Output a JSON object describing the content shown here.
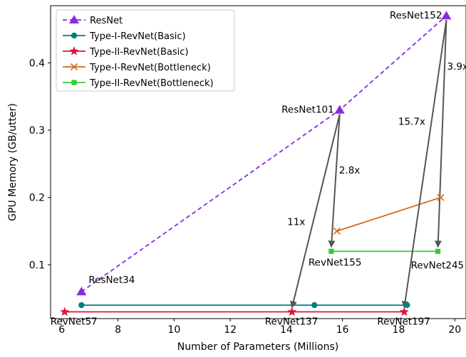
{
  "chart_data": {
    "type": "line",
    "title": "",
    "xlabel": "Number of Parameters (Millions)",
    "ylabel": "GPU Memory (GB/utter)",
    "xlim": [
      5.6,
      20.4
    ],
    "ylim": [
      0.02,
      0.485
    ],
    "xticks": [
      6,
      8,
      10,
      12,
      14,
      16,
      18,
      20
    ],
    "yticks": [
      0.1,
      0.2,
      0.3,
      0.4
    ],
    "grid": false,
    "legend_position": "top-left",
    "series": [
      {
        "name": "ResNet",
        "color": "#8a2be2",
        "marker": "triangle",
        "linestyle": "dashed",
        "x": [
          6.7,
          15.9,
          19.7
        ],
        "y": [
          0.06,
          0.33,
          0.47
        ]
      },
      {
        "name": "Type-I-RevNet(Basic)",
        "color": "#008080",
        "marker": "circle",
        "linestyle": "solid",
        "x": [
          6.7,
          15.0,
          18.3
        ],
        "y": [
          0.04,
          0.04,
          0.04
        ]
      },
      {
        "name": "Type-II-RevNet(Basic)",
        "color": "#dc143c",
        "marker": "star",
        "linestyle": "solid",
        "x": [
          6.1,
          14.2,
          18.2
        ],
        "y": [
          0.03,
          0.03,
          0.03
        ]
      },
      {
        "name": "Type-I-RevNet(Bottleneck)",
        "color": "#d2691e",
        "marker": "x",
        "linestyle": "solid",
        "x": [
          15.8,
          19.5
        ],
        "y": [
          0.15,
          0.2
        ]
      },
      {
        "name": "Type-II-RevNet(Bottleneck)",
        "color": "#32cd32",
        "marker": "square",
        "linestyle": "solid",
        "x": [
          15.6,
          19.4
        ],
        "y": [
          0.12,
          0.12
        ]
      }
    ],
    "point_labels": [
      {
        "text": "ResNet34",
        "x": 6.7,
        "y": 0.06
      },
      {
        "text": "ResNet101",
        "x": 15.9,
        "y": 0.33
      },
      {
        "text": "ResNet152",
        "x": 19.7,
        "y": 0.47
      },
      {
        "text": "RevNet57",
        "x": 6.1,
        "y": 0.03
      },
      {
        "text": "RevNet137",
        "x": 14.2,
        "y": 0.03
      },
      {
        "text": "RevNet197",
        "x": 18.2,
        "y": 0.03
      },
      {
        "text": "RevNet155",
        "x": 15.6,
        "y": 0.12
      },
      {
        "text": "RevNet245",
        "x": 19.4,
        "y": 0.12
      }
    ],
    "arrows": [
      {
        "from": [
          15.9,
          0.33
        ],
        "to": [
          14.2,
          0.03
        ],
        "label": "11x"
      },
      {
        "from": [
          15.9,
          0.33
        ],
        "to": [
          15.6,
          0.12
        ],
        "label": "2.8x"
      },
      {
        "from": [
          19.7,
          0.47
        ],
        "to": [
          18.2,
          0.03
        ],
        "label": "15.7x"
      },
      {
        "from": [
          19.7,
          0.47
        ],
        "to": [
          19.4,
          0.12
        ],
        "label": "3.9x"
      }
    ]
  }
}
